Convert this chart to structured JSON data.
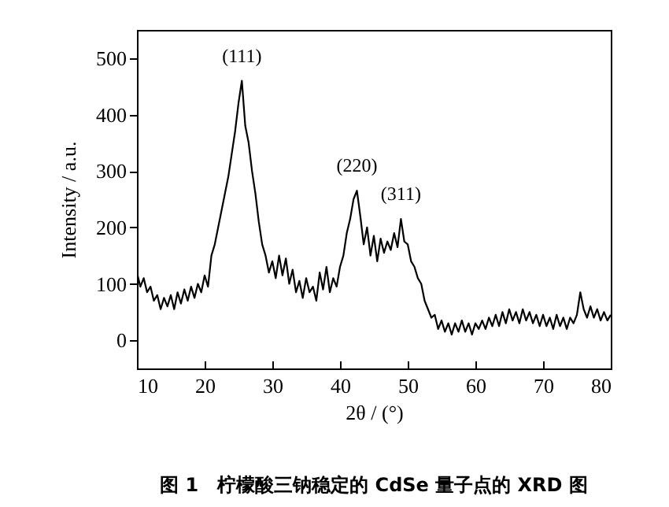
{
  "chart_data": {
    "type": "line",
    "title": "图 1　柠檬酸三钠稳定的 CdSe 量子点的 XRD 图",
    "xlabel": "2θ / (°)",
    "ylabel": "Intensity / a.u.",
    "x": [
      10,
      10.5,
      11,
      11.5,
      12,
      12.5,
      13,
      13.5,
      14,
      14.5,
      15,
      15.5,
      16,
      16.5,
      17,
      17.5,
      18,
      18.5,
      19,
      19.5,
      20,
      20.5,
      21,
      21.5,
      22,
      22.5,
      23,
      23.5,
      24,
      24.5,
      25,
      25.5,
      26,
      26.5,
      27,
      27.5,
      28,
      28.5,
      29,
      29.5,
      30,
      30.5,
      31,
      31.5,
      32,
      32.5,
      33,
      33.5,
      34,
      34.5,
      35,
      35.5,
      36,
      36.5,
      37,
      37.5,
      38,
      38.5,
      39,
      39.5,
      40,
      40.5,
      41,
      41.5,
      42,
      42.5,
      43,
      43.5,
      44,
      44.5,
      45,
      45.5,
      46,
      46.5,
      47,
      47.5,
      48,
      48.5,
      49,
      49.5,
      50,
      50.5,
      51,
      51.5,
      52,
      52.5,
      53,
      53.5,
      54,
      54.5,
      55,
      55.5,
      56,
      56.5,
      57,
      57.5,
      58,
      58.5,
      59,
      59.5,
      60,
      60.5,
      61,
      61.5,
      62,
      62.5,
      63,
      63.5,
      64,
      64.5,
      65,
      65.5,
      66,
      66.5,
      67,
      67.5,
      68,
      68.5,
      69,
      69.5,
      70,
      70.5,
      71,
      71.5,
      72,
      72.5,
      73,
      73.5,
      74,
      74.5,
      75,
      75.5,
      76,
      76.5,
      77,
      77.5,
      78,
      78.5,
      79,
      79.5,
      80
    ],
    "series": [
      {
        "color": "#000000",
        "values": [
          120,
          95,
          110,
          85,
          95,
          70,
          80,
          55,
          75,
          60,
          80,
          55,
          85,
          65,
          90,
          70,
          95,
          75,
          100,
          85,
          115,
          95,
          150,
          170,
          200,
          230,
          260,
          290,
          330,
          370,
          420,
          460,
          380,
          350,
          300,
          260,
          210,
          170,
          150,
          120,
          140,
          110,
          150,
          115,
          145,
          100,
          125,
          85,
          105,
          75,
          110,
          85,
          95,
          70,
          120,
          90,
          130,
          85,
          110,
          95,
          130,
          150,
          190,
          215,
          250,
          265,
          220,
          170,
          200,
          150,
          185,
          140,
          180,
          155,
          175,
          160,
          190,
          165,
          215,
          175,
          170,
          140,
          130,
          110,
          100,
          70,
          55,
          40,
          45,
          20,
          35,
          15,
          30,
          10,
          30,
          15,
          35,
          15,
          30,
          10,
          30,
          20,
          35,
          20,
          40,
          25,
          45,
          25,
          50,
          30,
          55,
          35,
          50,
          30,
          55,
          35,
          50,
          30,
          45,
          25,
          45,
          25,
          40,
          20,
          45,
          25,
          40,
          20,
          40,
          30,
          45,
          85,
          55,
          40,
          60,
          40,
          55,
          35,
          50,
          35,
          45
        ]
      }
    ],
    "annotations": [
      {
        "text": "(111)",
        "x": 25.5,
        "y": 460
      },
      {
        "text": "(220)",
        "x": 42.5,
        "y": 265
      },
      {
        "text": "(311)",
        "x": 49,
        "y": 215
      }
    ],
    "xlim": [
      10,
      80
    ],
    "xticks": [
      10,
      20,
      30,
      40,
      50,
      60,
      70,
      80
    ],
    "ylim": [
      -50,
      550
    ],
    "yticks": [
      0,
      100,
      200,
      300,
      400,
      500
    ],
    "grid": false,
    "line_style": "solid"
  }
}
